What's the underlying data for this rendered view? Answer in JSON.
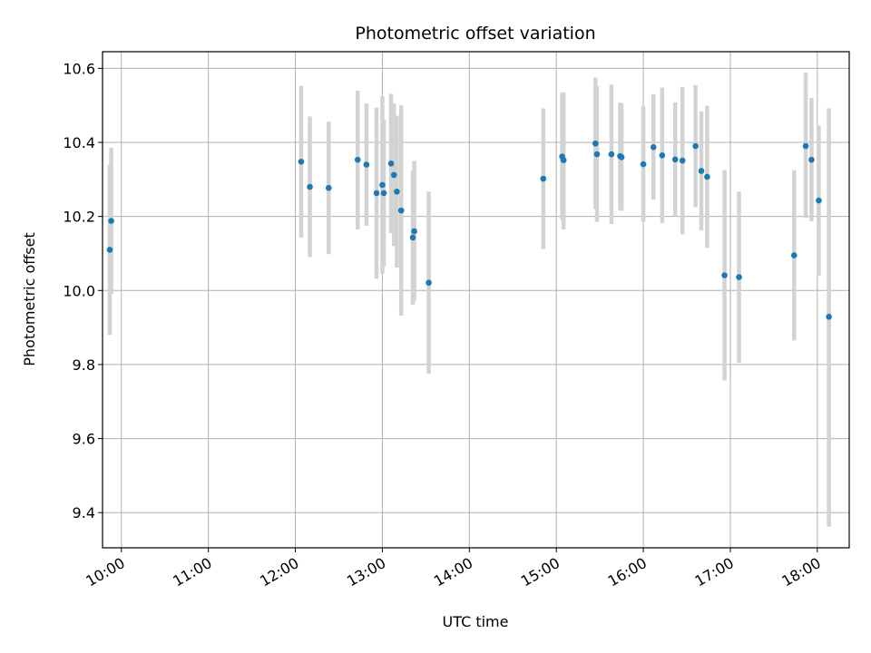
{
  "chart_data": {
    "type": "scatter",
    "title": "Photometric offset variation",
    "xlabel": "UTC time",
    "ylabel": "Photometric offset",
    "grid": true,
    "xlim": [
      "09:47",
      "18:22"
    ],
    "ylim": [
      9.305,
      10.645
    ],
    "x_ticks": [
      "10:00",
      "11:00",
      "12:00",
      "13:00",
      "14:00",
      "15:00",
      "16:00",
      "17:00",
      "18:00"
    ],
    "y_ticks": [
      "9.4",
      "9.6",
      "9.8",
      "10.0",
      "10.2",
      "10.4",
      "10.6"
    ],
    "colors": {
      "point": "#1f77b4",
      "errorbar": "#d3d3d3",
      "grid": "#b0b0b0"
    },
    "points": [
      {
        "x": "09:52",
        "y": 10.11,
        "ylow": 9.88,
        "yhigh": 10.34
      },
      {
        "x": "09:53",
        "y": 10.188,
        "ylow": 9.99,
        "yhigh": 10.386
      },
      {
        "x": "12:04",
        "y": 10.348,
        "ylow": 10.143,
        "yhigh": 10.553
      },
      {
        "x": "12:10",
        "y": 10.28,
        "ylow": 10.09,
        "yhigh": 10.47
      },
      {
        "x": "12:23",
        "y": 10.277,
        "ylow": 10.098,
        "yhigh": 10.456
      },
      {
        "x": "12:43",
        "y": 10.353,
        "ylow": 10.165,
        "yhigh": 10.54
      },
      {
        "x": "12:49",
        "y": 10.34,
        "ylow": 10.175,
        "yhigh": 10.505
      },
      {
        "x": "12:56",
        "y": 10.263,
        "ylow": 10.032,
        "yhigh": 10.494
      },
      {
        "x": "13:00",
        "y": 10.285,
        "ylow": 10.045,
        "yhigh": 10.525
      },
      {
        "x": "13:01",
        "y": 10.263,
        "ylow": 10.065,
        "yhigh": 10.462
      },
      {
        "x": "13:06",
        "y": 10.343,
        "ylow": 10.155,
        "yhigh": 10.531
      },
      {
        "x": "13:08",
        "y": 10.312,
        "ylow": 10.12,
        "yhigh": 10.505
      },
      {
        "x": "13:10",
        "y": 10.267,
        "ylow": 10.062,
        "yhigh": 10.472
      },
      {
        "x": "13:13",
        "y": 10.216,
        "ylow": 9.932,
        "yhigh": 10.5
      },
      {
        "x": "13:21",
        "y": 10.143,
        "ylow": 9.962,
        "yhigh": 10.324
      },
      {
        "x": "13:22",
        "y": 10.16,
        "ylow": 9.971,
        "yhigh": 10.35
      },
      {
        "x": "13:32",
        "y": 10.021,
        "ylow": 9.775,
        "yhigh": 10.267
      },
      {
        "x": "14:51",
        "y": 10.302,
        "ylow": 10.112,
        "yhigh": 10.492
      },
      {
        "x": "15:04",
        "y": 10.362,
        "ylow": 10.19,
        "yhigh": 10.535
      },
      {
        "x": "15:05",
        "y": 10.352,
        "ylow": 10.165,
        "yhigh": 10.535
      },
      {
        "x": "15:27",
        "y": 10.397,
        "ylow": 10.22,
        "yhigh": 10.575
      },
      {
        "x": "15:28",
        "y": 10.368,
        "ylow": 10.185,
        "yhigh": 10.552
      },
      {
        "x": "15:38",
        "y": 10.368,
        "ylow": 10.18,
        "yhigh": 10.556
      },
      {
        "x": "15:44",
        "y": 10.363,
        "ylow": 10.217,
        "yhigh": 10.508
      },
      {
        "x": "15:45",
        "y": 10.36,
        "ylow": 10.215,
        "yhigh": 10.505
      },
      {
        "x": "16:00",
        "y": 10.341,
        "ylow": 10.185,
        "yhigh": 10.497
      },
      {
        "x": "16:07",
        "y": 10.387,
        "ylow": 10.245,
        "yhigh": 10.53
      },
      {
        "x": "16:13",
        "y": 10.365,
        "ylow": 10.182,
        "yhigh": 10.548
      },
      {
        "x": "16:22",
        "y": 10.354,
        "ylow": 10.2,
        "yhigh": 10.508
      },
      {
        "x": "16:27",
        "y": 10.351,
        "ylow": 10.152,
        "yhigh": 10.55
      },
      {
        "x": "16:36",
        "y": 10.39,
        "ylow": 10.225,
        "yhigh": 10.555
      },
      {
        "x": "16:40",
        "y": 10.323,
        "ylow": 10.162,
        "yhigh": 10.484
      },
      {
        "x": "16:44",
        "y": 10.307,
        "ylow": 10.115,
        "yhigh": 10.499
      },
      {
        "x": "16:56",
        "y": 10.041,
        "ylow": 9.757,
        "yhigh": 10.325
      },
      {
        "x": "17:06",
        "y": 10.036,
        "ylow": 9.805,
        "yhigh": 10.267
      },
      {
        "x": "17:44",
        "y": 10.095,
        "ylow": 9.865,
        "yhigh": 10.325
      },
      {
        "x": "17:52",
        "y": 10.39,
        "ylow": 10.196,
        "yhigh": 10.588
      },
      {
        "x": "17:56",
        "y": 10.353,
        "ylow": 10.187,
        "yhigh": 10.52
      },
      {
        "x": "18:01",
        "y": 10.243,
        "ylow": 10.04,
        "yhigh": 10.445
      },
      {
        "x": "18:08",
        "y": 9.929,
        "ylow": 9.362,
        "yhigh": 10.492
      }
    ]
  }
}
